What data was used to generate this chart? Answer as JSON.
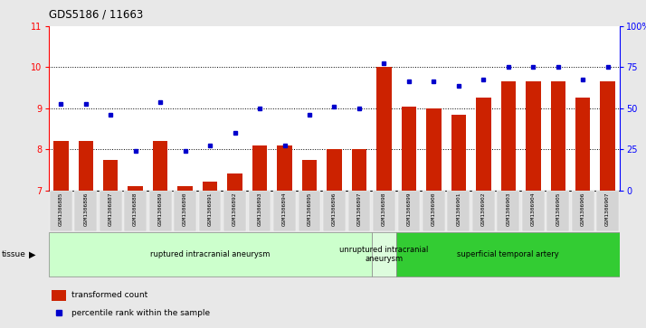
{
  "title": "GDS5186 / 11663",
  "samples": [
    "GSM1306885",
    "GSM1306886",
    "GSM1306887",
    "GSM1306888",
    "GSM1306889",
    "GSM1306890",
    "GSM1306891",
    "GSM1306892",
    "GSM1306893",
    "GSM1306894",
    "GSM1306895",
    "GSM1306896",
    "GSM1306897",
    "GSM1306898",
    "GSM1306899",
    "GSM1306900",
    "GSM1306901",
    "GSM1306902",
    "GSM1306903",
    "GSM1306904",
    "GSM1306905",
    "GSM1306906",
    "GSM1306907"
  ],
  "bar_values": [
    8.2,
    8.2,
    7.75,
    7.1,
    8.2,
    7.1,
    7.2,
    7.4,
    8.1,
    8.1,
    7.75,
    8.0,
    8.0,
    10.0,
    9.05,
    9.0,
    8.85,
    9.25,
    9.65,
    9.65,
    9.65,
    9.25,
    9.65
  ],
  "dot_values_left_scale": [
    9.1,
    9.1,
    8.85,
    7.95,
    9.15,
    7.95,
    8.1,
    8.4,
    9.0,
    8.1,
    8.85,
    9.05,
    9.0,
    10.1,
    9.65,
    9.65,
    9.55,
    9.7,
    10.0,
    10.0,
    10.0,
    9.7,
    10.0
  ],
  "groups": [
    {
      "label": "ruptured intracranial aneurysm",
      "start": 0,
      "end": 13,
      "color": "#ccffcc"
    },
    {
      "label": "unruptured intracranial\naneurysm",
      "start": 13,
      "end": 14,
      "color": "#ddfcdd"
    },
    {
      "label": "superficial temporal artery",
      "start": 14,
      "end": 23,
      "color": "#33cc33"
    }
  ],
  "bar_color": "#cc2200",
  "dot_color": "#0000cc",
  "ylim_left": [
    7,
    11
  ],
  "ylim_right": [
    0,
    100
  ],
  "yticks_left": [
    7,
    8,
    9,
    10,
    11
  ],
  "yticks_right": [
    0,
    25,
    50,
    75,
    100
  ],
  "ytick_labels_right": [
    "0",
    "25",
    "50",
    "75",
    "100%"
  ],
  "plot_bg_color": "#ffffff",
  "fig_bg_color": "#e8e8e8",
  "xticklabel_bg": "#d4d4d4"
}
